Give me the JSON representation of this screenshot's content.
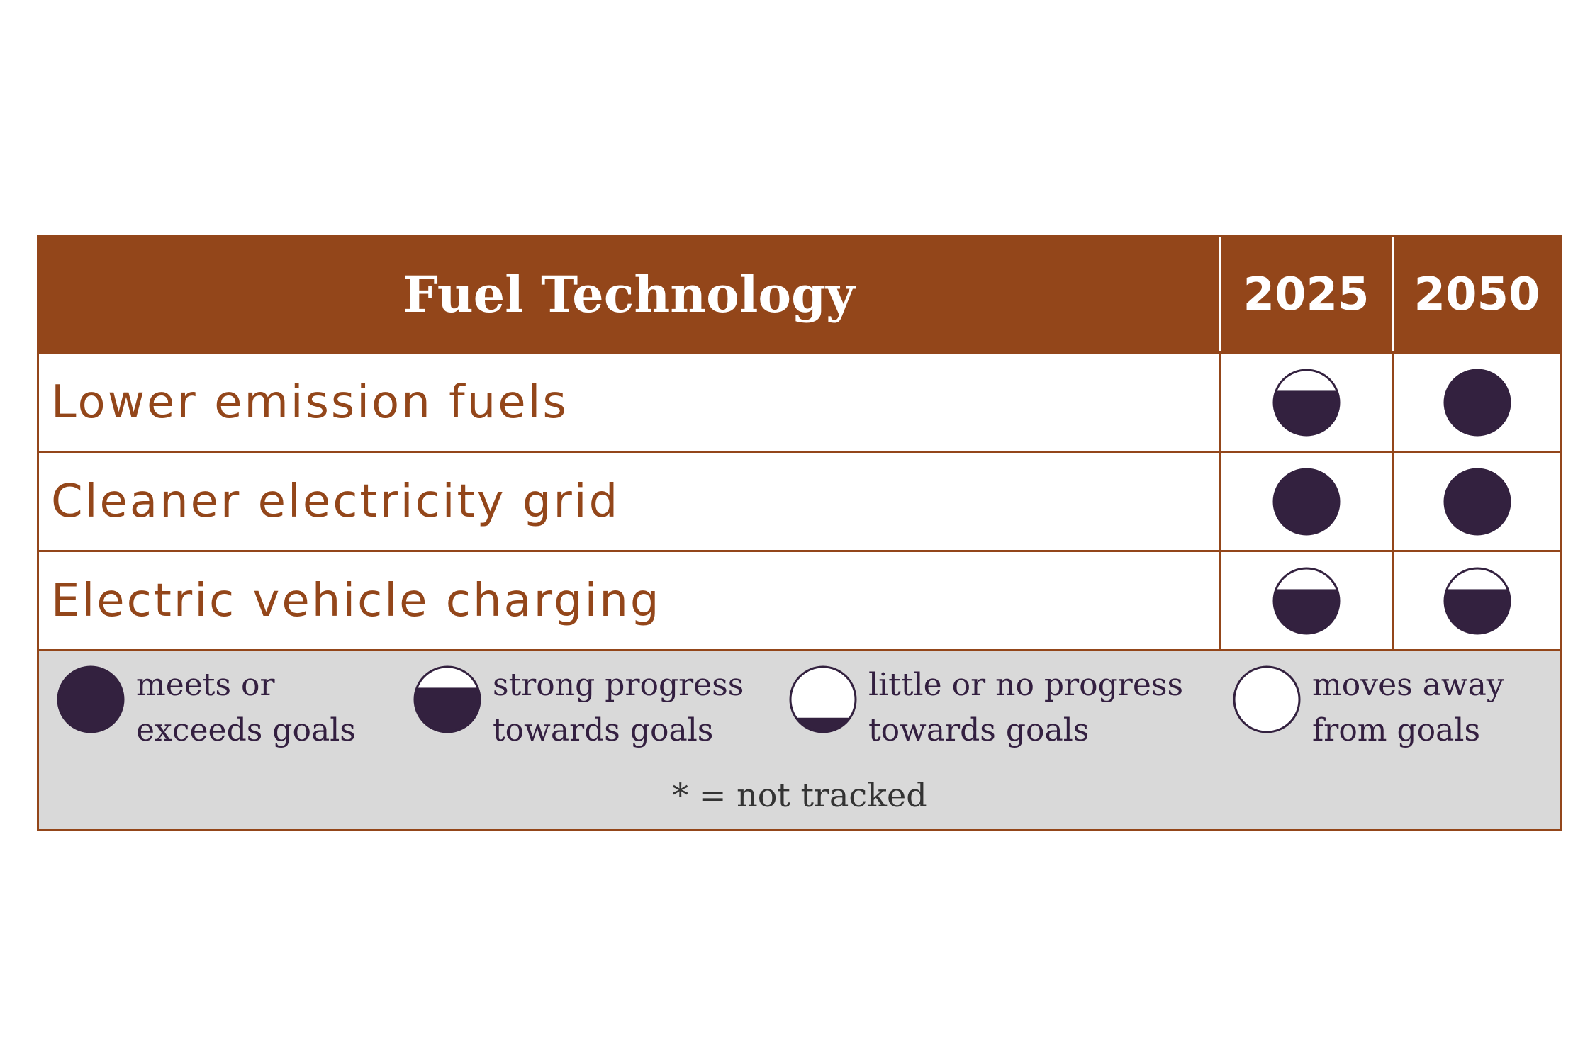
{
  "colors": {
    "brand": "#93461a",
    "icon_fill": "#33213f",
    "legend_background": "#d9d9d9"
  },
  "header": {
    "title": "Fuel Technology",
    "years": [
      "2025",
      "2050"
    ]
  },
  "rows": [
    {
      "label": "Lower emission fuels",
      "status_2025": "strong-progress",
      "status_2050": "meets-or-exceeds"
    },
    {
      "label": "Cleaner electricity grid",
      "status_2025": "meets-or-exceeds",
      "status_2050": "meets-or-exceeds"
    },
    {
      "label": "Electric vehicle charging",
      "status_2025": "strong-progress",
      "status_2050": "strong-progress"
    }
  ],
  "legend": [
    {
      "status": "meets-or-exceeds",
      "icon": "full-circle-icon",
      "line1": "meets or",
      "line2": "exceeds goals"
    },
    {
      "status": "strong-progress",
      "icon": "mostly-filled-circle-icon",
      "line1": "strong progress",
      "line2": "towards goals"
    },
    {
      "status": "little-or-no-progress",
      "icon": "slightly-filled-circle-icon",
      "line1": "little or no progress",
      "line2": "towards goals"
    },
    {
      "status": "moves-away",
      "icon": "empty-circle-icon",
      "line1": "moves away",
      "line2": "from goals"
    }
  ],
  "footnote": "* = not tracked"
}
